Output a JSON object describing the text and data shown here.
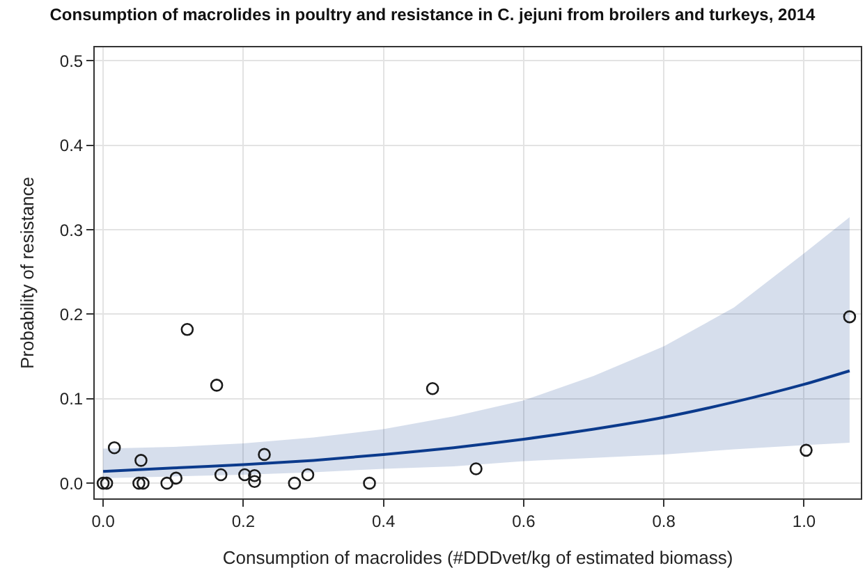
{
  "chart_data": {
    "type": "scatter",
    "title": "Consumption of macrolides in poultry and resistance in C. jejuni from broilers and turkeys, 2014",
    "xlabel": "Consumption of macrolides (#DDDvet/kg of estimated biomass)",
    "ylabel": "Probability of resistance",
    "xlim": [
      -0.012,
      1.081
    ],
    "xticks": [
      {
        "value": 0,
        "label": "0.0"
      },
      0.2,
      0.4,
      0.6,
      0.8,
      {
        "value": 1,
        "label": "1.0"
      }
    ],
    "ylim": [
      -0.018,
      0.516
    ],
    "yticks": [
      {
        "value": 0,
        "label": "0.0"
      },
      0.1,
      0.2,
      0.3,
      0.4,
      0.5
    ],
    "grid": true,
    "series": [
      {
        "marker": "circle",
        "color": "#1a1a1a",
        "x": [
          0.0,
          0.005,
          0.016,
          0.054,
          0.051,
          0.057,
          0.091,
          0.104,
          0.12,
          0.162,
          0.168,
          0.202,
          0.216,
          0.216,
          0.23,
          0.273,
          0.292,
          0.38,
          0.47,
          0.532,
          1.003,
          1.065
        ],
        "values": [
          0,
          0,
          0.042,
          0.027,
          0,
          0,
          0,
          0.006,
          0.182,
          0.116,
          0.01,
          0.01,
          0.009,
          0.002,
          0.034,
          0,
          0.01,
          0,
          0.112,
          0.017,
          0.039,
          0.197
        ]
      },
      {
        "type": "line",
        "marker": "none",
        "line_style": "solid",
        "color": "#0b3a8c",
        "x": [
          0,
          0.1,
          0.2,
          0.3,
          0.4,
          0.5,
          0.6,
          0.7,
          0.8,
          0.9,
          1.0,
          1.065
        ],
        "values": [
          0.014,
          0.018,
          0.022,
          0.027,
          0.034,
          0.042,
          0.052,
          0.064,
          0.078,
          0.096,
          0.117,
          0.133
        ],
        "lower": [
          0.006,
          0.008,
          0.01,
          0.013,
          0.017,
          0.02,
          0.026,
          0.03,
          0.034,
          0.04,
          0.045,
          0.048
        ],
        "upper": [
          0.041,
          0.043,
          0.047,
          0.054,
          0.064,
          0.079,
          0.098,
          0.127,
          0.162,
          0.208,
          0.272,
          0.315
        ]
      }
    ]
  }
}
